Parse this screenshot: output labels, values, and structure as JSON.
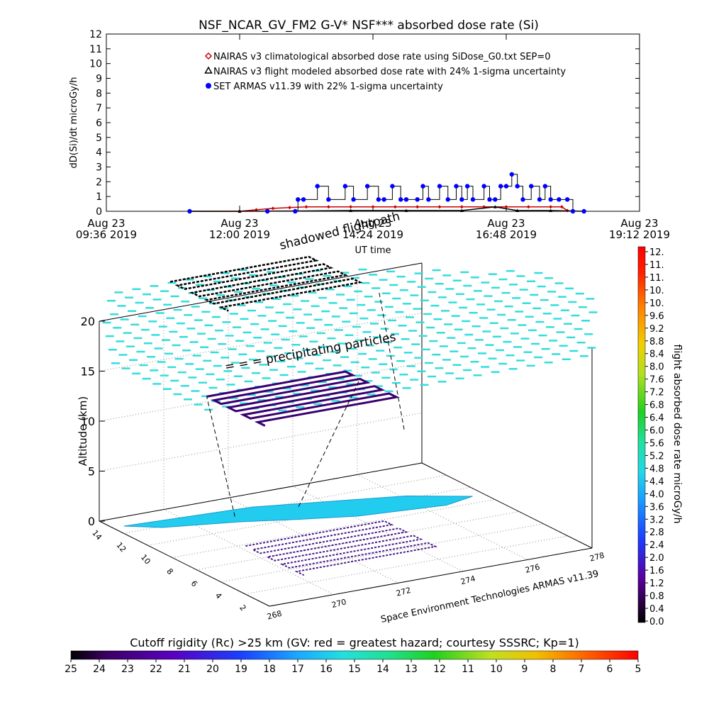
{
  "title": "NSF_NCAR_GV_FM2 G-V* NSF*** absorbed dose rate (Si)",
  "timeseries": {
    "ylabel": "dD(Si)/dt microGy/h",
    "xlabel": "UT time",
    "yticks": [
      "0",
      "1",
      "2",
      "3",
      "4",
      "5",
      "6",
      "7",
      "8",
      "9",
      "10",
      "11",
      "12"
    ],
    "xticks": [
      {
        "line1": "Aug 23",
        "line2": "09:36 2019"
      },
      {
        "line1": "Aug 23",
        "line2": "12:00 2019"
      },
      {
        "line1": "Aug 23",
        "line2": "14:24 2019"
      },
      {
        "line1": "Aug 23",
        "line2": "16:48 2019"
      },
      {
        "line1": "Aug 23",
        "line2": "19:12 2019"
      }
    ],
    "legend": [
      {
        "label": "NAIRAS v3 climatological absorbed dose rate using SiDose_G0.txt SEP=0",
        "symbol": "diamond",
        "color": "#cc0000"
      },
      {
        "label": "NAIRAS v3 flight modeled absorbed dose rate with 24% 1-sigma uncertainty",
        "symbol": "triangle",
        "color": "#000000"
      },
      {
        "label": "SET ARMAS v11.39 with 22% 1-sigma uncertainty",
        "symbol": "dot",
        "color": "#0000ff"
      }
    ]
  },
  "chart_data": {
    "type": "line",
    "title": "NSF_NCAR_GV_FM2 G-V* NSF*** absorbed dose rate (Si)",
    "xlabel": "UT time",
    "ylabel": "dD(Si)/dt microGy/h",
    "x_unit": "hours UT, Aug 23 2019",
    "xlim": [
      9.6,
      19.2
    ],
    "ylim": [
      0,
      12
    ],
    "series": [
      {
        "name": "NAIRAS v3 climatological absorbed dose rate using SiDose_G0.txt SEP=0",
        "x": [
          11.1,
          12.0,
          12.3,
          12.6,
          12.9,
          13.2,
          13.6,
          14.0,
          14.4,
          14.8,
          15.2,
          15.6,
          16.0,
          16.4,
          16.8,
          17.2,
          17.6,
          17.8,
          17.9
        ],
        "y": [
          0.0,
          0.0,
          0.1,
          0.2,
          0.25,
          0.3,
          0.3,
          0.3,
          0.3,
          0.3,
          0.3,
          0.3,
          0.3,
          0.3,
          0.3,
          0.3,
          0.3,
          0.3,
          0.05
        ]
      },
      {
        "name": "NAIRAS v3 flight modeled absorbed dose rate with 24% 1-sigma uncertainty",
        "x": [
          11.1,
          12.0,
          13.0,
          14.0,
          15.0,
          16.0,
          16.6,
          17.0,
          17.6,
          18.0,
          18.2
        ],
        "y": [
          0.0,
          0.0,
          0.02,
          0.05,
          0.05,
          0.05,
          0.3,
          0.05,
          0.05,
          0.02,
          0.0
        ]
      },
      {
        "name": "SET ARMAS v11.39 with 22% 1-sigma uncertainty",
        "x": [
          11.1,
          12.5,
          13.0,
          13.05,
          13.15,
          13.4,
          13.6,
          13.9,
          14.05,
          14.3,
          14.5,
          14.6,
          14.75,
          14.9,
          15.0,
          15.2,
          15.3,
          15.4,
          15.6,
          15.75,
          15.9,
          16.0,
          16.1,
          16.2,
          16.4,
          16.5,
          16.6,
          16.7,
          16.8,
          16.9,
          17.0,
          17.1,
          17.25,
          17.4,
          17.5,
          17.6,
          17.75,
          17.9,
          18.0,
          18.2
        ],
        "y": [
          0.0,
          0.0,
          0.0,
          0.8,
          0.8,
          1.7,
          0.8,
          1.7,
          0.8,
          1.7,
          0.8,
          0.8,
          1.7,
          0.8,
          0.8,
          0.8,
          1.7,
          0.8,
          1.7,
          0.8,
          1.7,
          0.8,
          1.7,
          0.8,
          1.7,
          0.8,
          0.8,
          1.7,
          1.7,
          2.5,
          1.7,
          0.8,
          1.7,
          0.8,
          1.7,
          0.8,
          0.8,
          0.8,
          0.0,
          0.0
        ]
      }
    ],
    "scene3d": {
      "zlabel": "Altitude (km)",
      "zticks": [
        "0",
        "5",
        "10",
        "15",
        "20"
      ],
      "lat_ticks": [
        "2",
        "4",
        "6",
        "8",
        "10",
        "12",
        "14"
      ],
      "lon_ticks": [
        "268",
        "270",
        "272",
        "274",
        "276",
        "278"
      ],
      "annotations": [
        "shadowed flightpath",
        "= = = precipitating particles"
      ],
      "credit": "Space Environment Technologies ARMAS v11.39",
      "flight_altitude_km": [
        0,
        13,
        13,
        13,
        13,
        13,
        13,
        13,
        13,
        0
      ]
    },
    "dose_colorbar": {
      "label": "flight absorbed dose rate microGy/h",
      "ticks": [
        "12.",
        "11.",
        "11.",
        "10.",
        "10.",
        "9.6",
        "9.2",
        "8.8",
        "8.4",
        "8.0",
        "7.6",
        "7.2",
        "6.8",
        "6.4",
        "6.0",
        "5.6",
        "5.2",
        "4.8",
        "4.4",
        "4.0",
        "3.6",
        "3.2",
        "2.8",
        "2.4",
        "2.0",
        "1.6",
        "1.2",
        "0.8",
        "0.4",
        "0.0"
      ]
    },
    "cutoff_colorbar": {
      "label": "Cutoff rigidity (Rc) >25 km (GV: red = greatest hazard; courtesy SSSRC; Kp=1)",
      "ticks": [
        "25",
        "24",
        "23",
        "22",
        "21",
        "20",
        "19",
        "18",
        "17",
        "16",
        "15",
        "14",
        "13",
        "12",
        "11",
        "10",
        "9",
        "8",
        "7",
        "6",
        "5"
      ]
    }
  },
  "colors": {
    "climatological": "#cc0000",
    "flight_model": "#000000",
    "armas": "#0000ff",
    "particles": "#33dddd",
    "terrain": "#22ccee"
  }
}
